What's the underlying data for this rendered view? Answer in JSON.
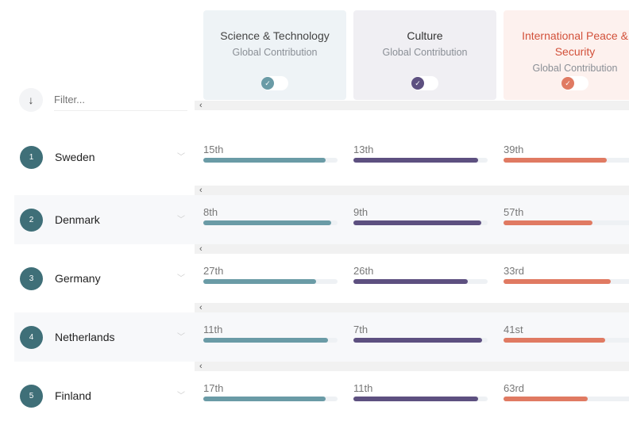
{
  "filter": {
    "placeholder": "Filter..."
  },
  "scroll_left": "‹",
  "categories": [
    {
      "title": "Science & Technology",
      "subtitle": "Global Contribution",
      "color": "#6a9ba6",
      "bg": "#eef3f6",
      "title_color": "#444",
      "enabled": true
    },
    {
      "title": "Culture",
      "subtitle": "Global Contribution",
      "color": "#5d5080",
      "bg": "#f0eff3",
      "title_color": "#333",
      "enabled": true
    },
    {
      "title": "International Peace & Security",
      "subtitle": "Global Contribution",
      "color": "#e07a62",
      "bg": "#fdf1ee",
      "title_color": "#d2513a",
      "enabled": true
    }
  ],
  "rows": [
    {
      "rank": "1",
      "country": "Sweden",
      "cells": [
        {
          "label": "15th",
          "fill": 0.91
        },
        {
          "label": "13th",
          "fill": 0.93
        },
        {
          "label": "39th",
          "fill": 0.77
        }
      ]
    },
    {
      "rank": "2",
      "country": "Denmark",
      "cells": [
        {
          "label": "8th",
          "fill": 0.95
        },
        {
          "label": "9th",
          "fill": 0.95
        },
        {
          "label": "57th",
          "fill": 0.66
        }
      ]
    },
    {
      "rank": "3",
      "country": "Germany",
      "cells": [
        {
          "label": "27th",
          "fill": 0.84
        },
        {
          "label": "26th",
          "fill": 0.85
        },
        {
          "label": "33rd",
          "fill": 0.8
        }
      ]
    },
    {
      "rank": "4",
      "country": "Netherlands",
      "cells": [
        {
          "label": "11th",
          "fill": 0.93
        },
        {
          "label": "7th",
          "fill": 0.96
        },
        {
          "label": "41st",
          "fill": 0.76
        }
      ]
    },
    {
      "rank": "5",
      "country": "Finland",
      "cells": [
        {
          "label": "17th",
          "fill": 0.91
        },
        {
          "label": "11th",
          "fill": 0.93
        },
        {
          "label": "63rd",
          "fill": 0.63
        }
      ]
    }
  ]
}
